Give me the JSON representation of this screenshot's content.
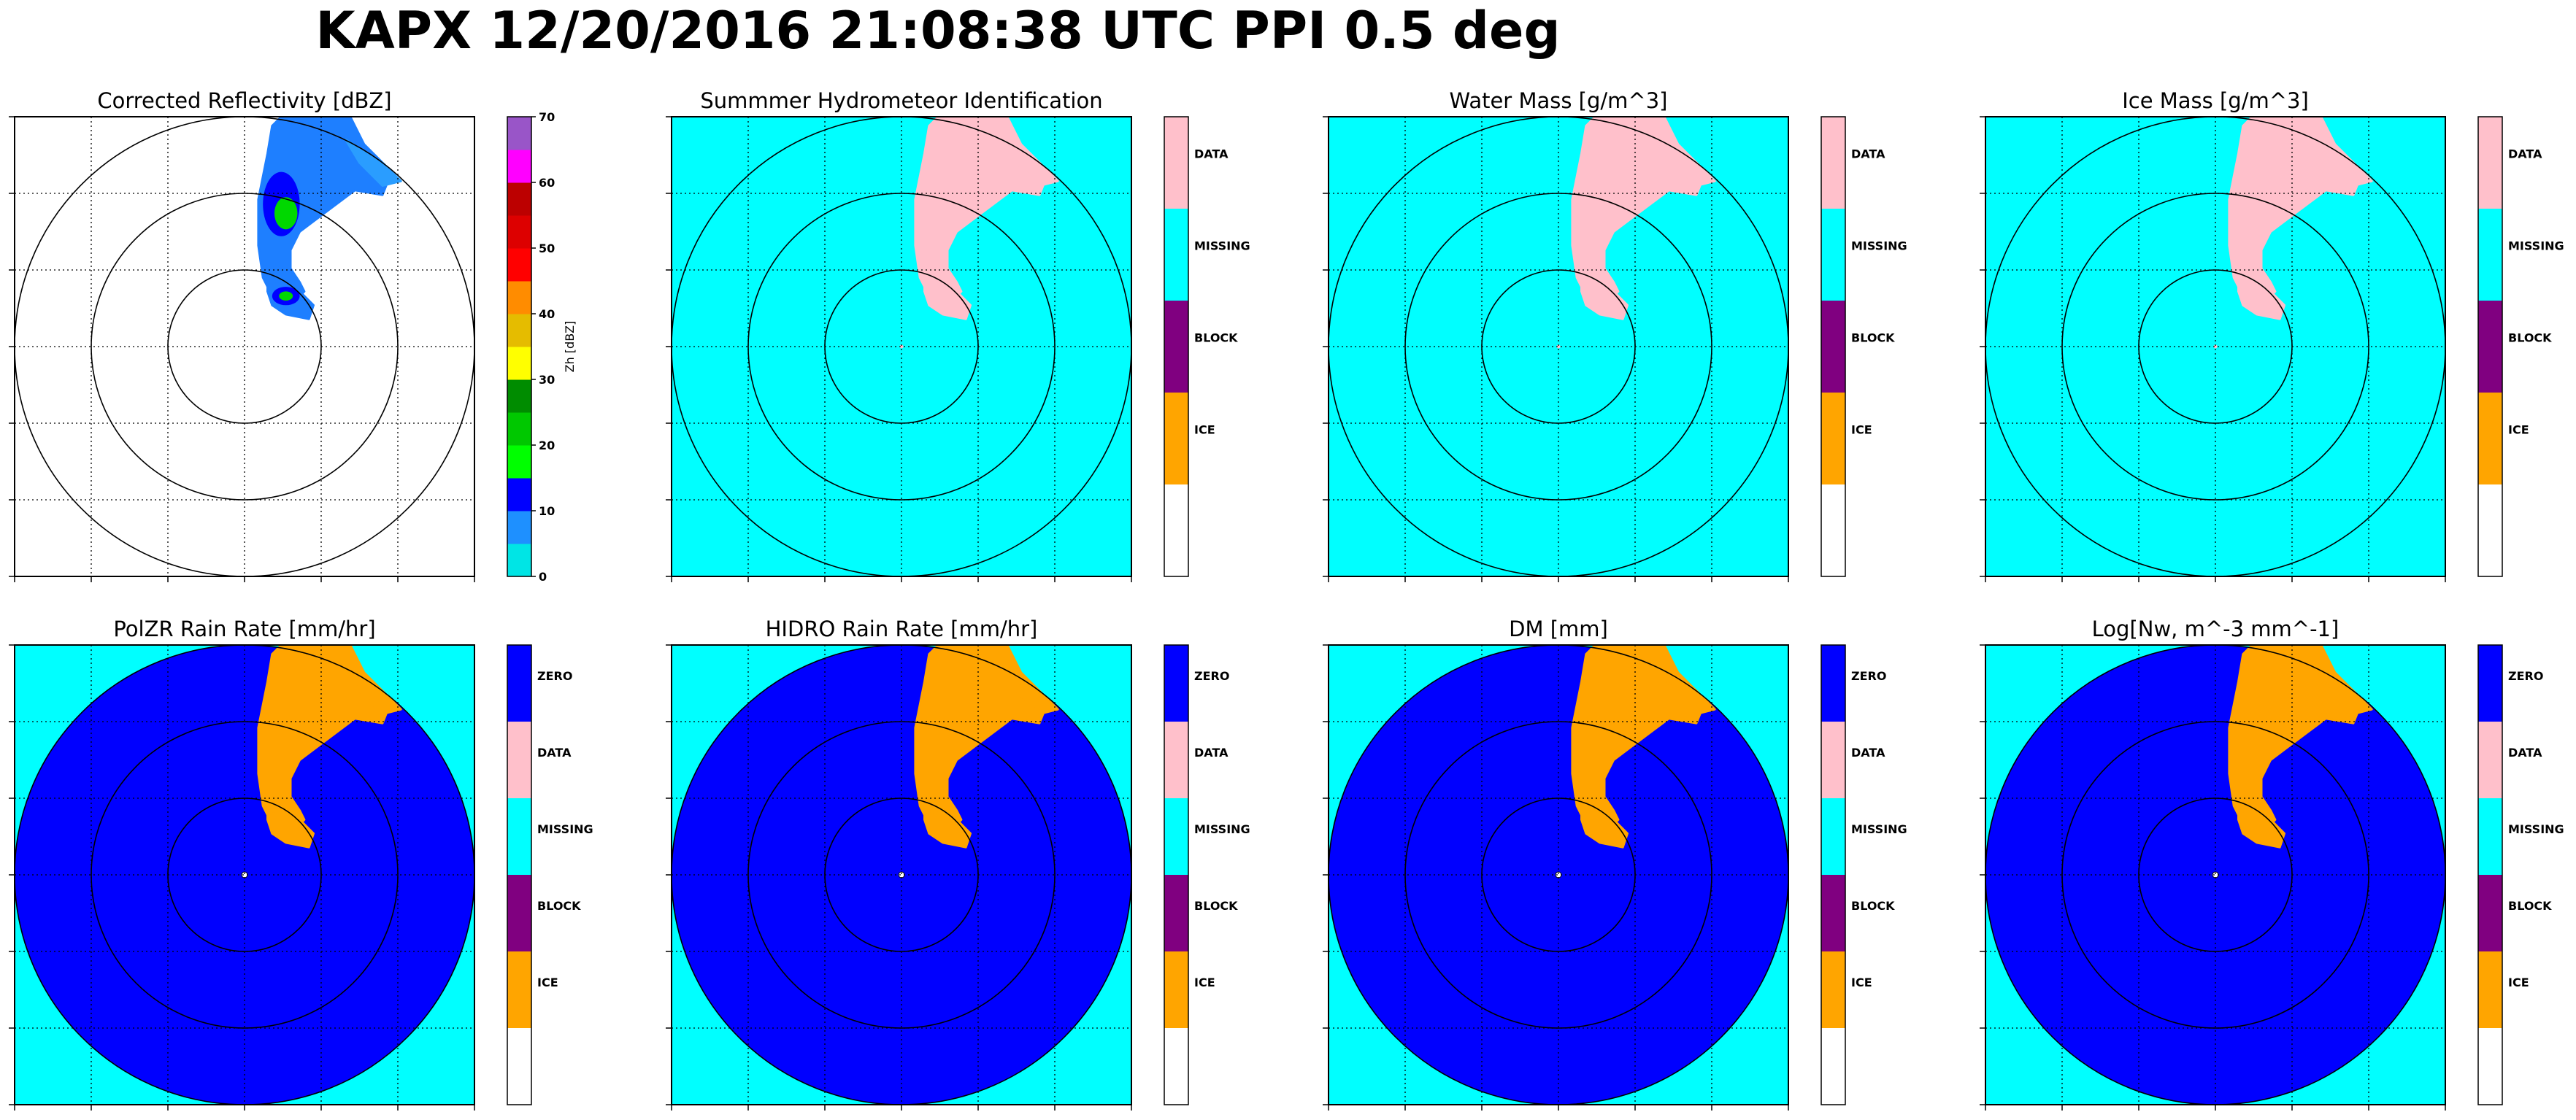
{
  "title": "KAPX 12/20/2016 21:08:38 UTC PPI 0.5 deg",
  "colors": {
    "ZERO": "#0000ff",
    "DATA": "#ffc0cb",
    "MISSING": "#00ffff",
    "BLOCK": "#800080",
    "ICE": "#ffa500",
    "BLANK": "#ffffff",
    "axes_frame": "#000000"
  },
  "panels": [
    {
      "key": "reflectivity",
      "title": "Corrected Reflectivity [dBZ]",
      "kind": "reflectivity",
      "colorbar": {
        "label": "Zh [dBZ]",
        "ticks": [
          "0",
          "10",
          "20",
          "30",
          "40",
          "50",
          "60",
          "70"
        ],
        "bins": [
          {
            "from": 0,
            "to": 5,
            "color": "#00e5e5"
          },
          {
            "from": 5,
            "to": 10,
            "color": "#1e90ff"
          },
          {
            "from": 10,
            "to": 15,
            "color": "#0000ff"
          },
          {
            "from": 15,
            "to": 20,
            "color": "#00ff00"
          },
          {
            "from": 20,
            "to": 25,
            "color": "#00c800"
          },
          {
            "from": 25,
            "to": 30,
            "color": "#008c00"
          },
          {
            "from": 30,
            "to": 35,
            "color": "#ffff00"
          },
          {
            "from": 35,
            "to": 40,
            "color": "#e5bc00"
          },
          {
            "from": 40,
            "to": 45,
            "color": "#ff8c00"
          },
          {
            "from": 45,
            "to": 50,
            "color": "#ff0000"
          },
          {
            "from": 50,
            "to": 55,
            "color": "#dd0000"
          },
          {
            "from": 55,
            "to": 60,
            "color": "#bc0000"
          },
          {
            "from": 60,
            "to": 65,
            "color": "#ff00ff"
          },
          {
            "from": 65,
            "to": 70,
            "color": "#9955c8"
          }
        ]
      }
    },
    {
      "key": "hid",
      "title": "Summmer Hydrometeor Identification",
      "kind": "category",
      "background": "MISSING",
      "echo": "DATA",
      "colorbar": {
        "classes": [
          "DATA",
          "MISSING",
          "BLOCK",
          "ICE"
        ],
        "segments": [
          "DATA",
          "MISSING",
          "BLOCK",
          "ICE",
          "BLANK"
        ]
      }
    },
    {
      "key": "water_mass",
      "title": "Water Mass [g/m^3]",
      "kind": "category",
      "background": "MISSING",
      "echo": "DATA",
      "colorbar": {
        "classes": [
          "DATA",
          "MISSING",
          "BLOCK",
          "ICE"
        ],
        "segments": [
          "DATA",
          "MISSING",
          "BLOCK",
          "ICE",
          "BLANK"
        ]
      }
    },
    {
      "key": "ice_mass",
      "title": "Ice Mass [g/m^3]",
      "kind": "category",
      "background": "MISSING",
      "echo": "DATA",
      "colorbar": {
        "classes": [
          "DATA",
          "MISSING",
          "BLOCK",
          "ICE"
        ],
        "segments": [
          "DATA",
          "MISSING",
          "BLOCK",
          "ICE",
          "BLANK"
        ]
      }
    },
    {
      "key": "polzr_rain_rate",
      "title": "PolZR Rain Rate [mm/hr]",
      "kind": "disk",
      "background": "MISSING",
      "disk": "ZERO",
      "echo": "ICE",
      "colorbar": {
        "classes": [
          "ZERO",
          "DATA",
          "MISSING",
          "BLOCK",
          "ICE"
        ],
        "segments": [
          "ZERO",
          "DATA",
          "MISSING",
          "BLOCK",
          "ICE",
          "BLANK"
        ]
      }
    },
    {
      "key": "hidro_rain_rate",
      "title": "HIDRO Rain Rate [mm/hr]",
      "kind": "disk",
      "background": "MISSING",
      "disk": "ZERO",
      "echo": "ICE",
      "colorbar": {
        "classes": [
          "ZERO",
          "DATA",
          "MISSING",
          "BLOCK",
          "ICE"
        ],
        "segments": [
          "ZERO",
          "DATA",
          "MISSING",
          "BLOCK",
          "ICE",
          "BLANK"
        ]
      }
    },
    {
      "key": "dm",
      "title": "DM [mm]",
      "kind": "disk",
      "background": "MISSING",
      "disk": "ZERO",
      "echo": "ICE",
      "colorbar": {
        "classes": [
          "ZERO",
          "DATA",
          "MISSING",
          "BLOCK",
          "ICE"
        ],
        "segments": [
          "ZERO",
          "DATA",
          "MISSING",
          "BLOCK",
          "ICE",
          "BLANK"
        ]
      }
    },
    {
      "key": "log_nw",
      "title": "Log[Nw, m^-3 mm^-1]",
      "kind": "disk",
      "background": "MISSING",
      "disk": "ZERO",
      "echo": "ICE",
      "colorbar": {
        "classes": [
          "ZERO",
          "DATA",
          "MISSING",
          "BLOCK",
          "ICE"
        ],
        "segments": [
          "ZERO",
          "DATA",
          "MISSING",
          "BLOCK",
          "ICE",
          "BLANK"
        ]
      }
    }
  ],
  "chart_data": {
    "type": "heatmap",
    "title": "KAPX 12/20/2016 21:08:38 UTC PPI 0.5 deg",
    "scan": "PPI",
    "elevation_deg": 0.5,
    "site": "KAPX",
    "grid": true,
    "range_rings": 3,
    "series": [
      {
        "name": "Corrected Reflectivity [dBZ]",
        "units": "dBZ",
        "range": [
          0,
          70
        ],
        "echo": "band of echo north / north-northeast of the radar, mostly 5-15 dBZ with embedded 15-30 dBZ cores"
      },
      {
        "name": "Summmer Hydrometeor Identification",
        "classes": [
          "DATA",
          "MISSING",
          "BLOCK",
          "ICE"
        ],
        "echo": "DATA where echo is present, MISSING elsewhere"
      },
      {
        "name": "Water Mass [g/m^3]",
        "classes": [
          "DATA",
          "MISSING",
          "BLOCK",
          "ICE"
        ],
        "echo": "DATA where echo is present, MISSING elsewhere"
      },
      {
        "name": "Ice Mass [g/m^3]",
        "classes": [
          "DATA",
          "MISSING",
          "BLOCK",
          "ICE"
        ],
        "echo": "DATA where echo is present, MISSING elsewhere"
      },
      {
        "name": "PolZR Rain Rate [mm/hr]",
        "classes": [
          "ZERO",
          "DATA",
          "MISSING",
          "BLOCK",
          "ICE"
        ],
        "echo": "ZERO within radar range, ICE where echo is present, MISSING outside range"
      },
      {
        "name": "HIDRO Rain Rate [mm/hr]",
        "classes": [
          "ZERO",
          "DATA",
          "MISSING",
          "BLOCK",
          "ICE"
        ],
        "echo": "ZERO within radar range, ICE where echo is present, MISSING outside range"
      },
      {
        "name": "DM [mm]",
        "classes": [
          "ZERO",
          "DATA",
          "MISSING",
          "BLOCK",
          "ICE"
        ],
        "echo": "ZERO within radar range, ICE where echo is present, MISSING outside range"
      },
      {
        "name": "Log[Nw, m^-3 mm^-1]",
        "classes": [
          "ZERO",
          "DATA",
          "MISSING",
          "BLOCK",
          "ICE"
        ],
        "echo": "ZERO within radar range, ICE where echo is present, MISSING outside range"
      }
    ]
  }
}
